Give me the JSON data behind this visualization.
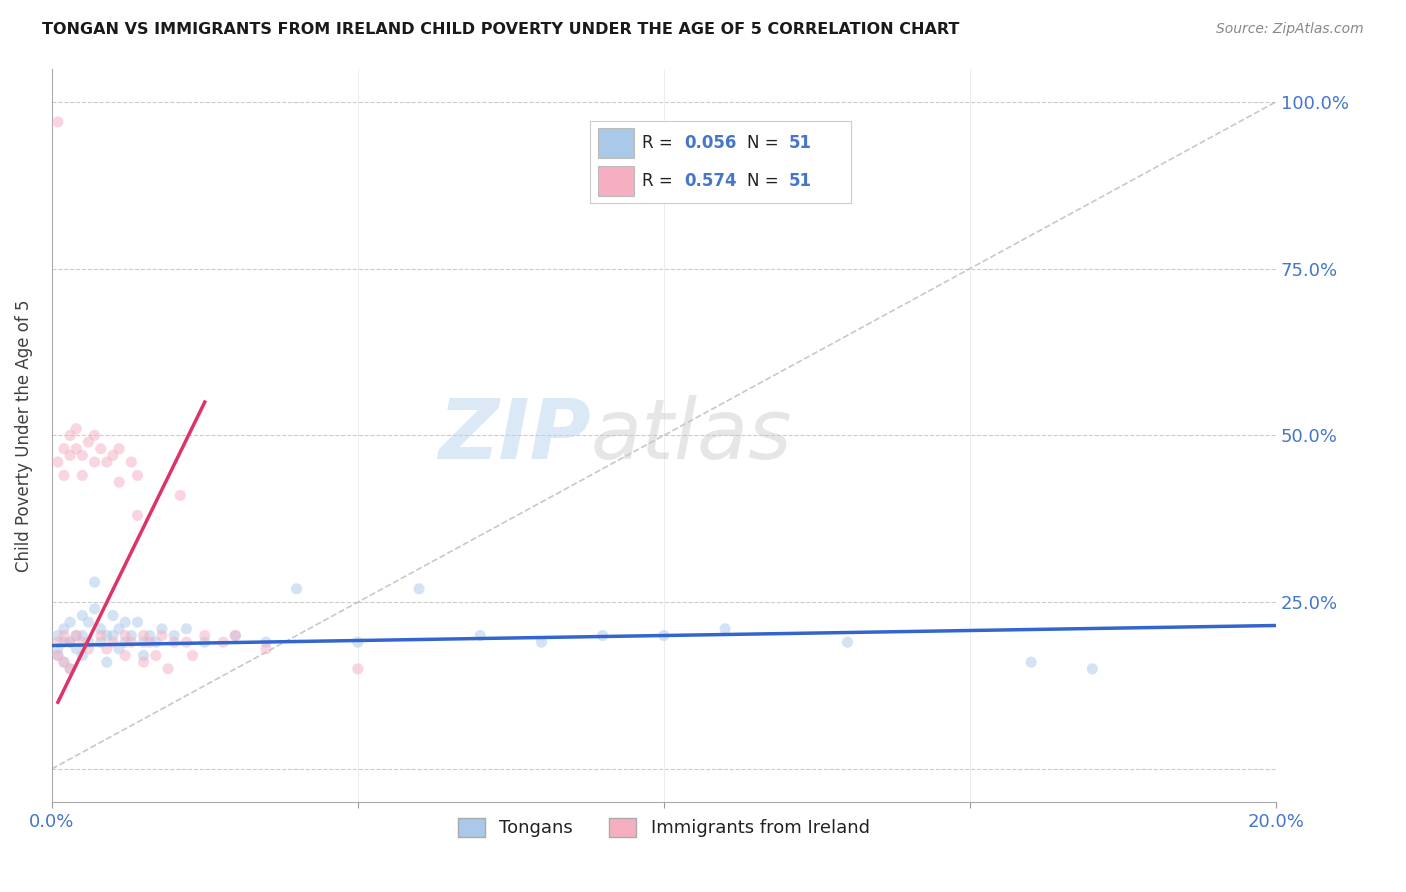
{
  "title": "TONGAN VS IMMIGRANTS FROM IRELAND CHILD POVERTY UNDER THE AGE OF 5 CORRELATION CHART",
  "source": "Source: ZipAtlas.com",
  "ylabel": "Child Poverty Under the Age of 5",
  "xlim": [
    0.0,
    0.2
  ],
  "ylim": [
    -0.05,
    1.05
  ],
  "xticks": [
    0.0,
    0.05,
    0.1,
    0.15,
    0.2
  ],
  "xtick_labels": [
    "0.0%",
    "",
    "",
    "",
    "20.0%"
  ],
  "ytick_positions": [
    0.0,
    0.25,
    0.5,
    0.75,
    1.0
  ],
  "ytick_labels": [
    "",
    "25.0%",
    "50.0%",
    "75.0%",
    "100.0%"
  ],
  "legend_labels": [
    "Tongans",
    "Immigrants from Ireland"
  ],
  "R_blue": 0.056,
  "N_blue": 51,
  "R_pink": 0.574,
  "N_pink": 51,
  "blue_color": "#aac8e8",
  "pink_color": "#f5afc0",
  "blue_line_color": "#3366cc",
  "pink_line_color": "#dd3366",
  "diag_line_color": "#bbbbbb",
  "watermark_zip": "ZIP",
  "watermark_atlas": "atlas",
  "background_color": "#ffffff",
  "grid_color": "#cccccc",
  "title_color": "#1a1a1a",
  "axis_label_color": "#4477cc",
  "blue_scatter": [
    [
      0.001,
      0.2
    ],
    [
      0.001,
      0.18
    ],
    [
      0.001,
      0.17
    ],
    [
      0.002,
      0.21
    ],
    [
      0.002,
      0.19
    ],
    [
      0.002,
      0.16
    ],
    [
      0.003,
      0.22
    ],
    [
      0.003,
      0.19
    ],
    [
      0.003,
      0.15
    ],
    [
      0.004,
      0.2
    ],
    [
      0.004,
      0.18
    ],
    [
      0.005,
      0.23
    ],
    [
      0.005,
      0.2
    ],
    [
      0.005,
      0.17
    ],
    [
      0.006,
      0.22
    ],
    [
      0.006,
      0.19
    ],
    [
      0.007,
      0.28
    ],
    [
      0.007,
      0.24
    ],
    [
      0.008,
      0.21
    ],
    [
      0.008,
      0.19
    ],
    [
      0.009,
      0.2
    ],
    [
      0.009,
      0.16
    ],
    [
      0.01,
      0.23
    ],
    [
      0.01,
      0.2
    ],
    [
      0.011,
      0.21
    ],
    [
      0.011,
      0.18
    ],
    [
      0.012,
      0.22
    ],
    [
      0.012,
      0.19
    ],
    [
      0.013,
      0.2
    ],
    [
      0.014,
      0.22
    ],
    [
      0.015,
      0.19
    ],
    [
      0.015,
      0.17
    ],
    [
      0.016,
      0.2
    ],
    [
      0.017,
      0.19
    ],
    [
      0.018,
      0.21
    ],
    [
      0.02,
      0.2
    ],
    [
      0.022,
      0.21
    ],
    [
      0.025,
      0.19
    ],
    [
      0.03,
      0.2
    ],
    [
      0.035,
      0.19
    ],
    [
      0.04,
      0.27
    ],
    [
      0.05,
      0.19
    ],
    [
      0.06,
      0.27
    ],
    [
      0.07,
      0.2
    ],
    [
      0.08,
      0.19
    ],
    [
      0.09,
      0.2
    ],
    [
      0.1,
      0.2
    ],
    [
      0.11,
      0.21
    ],
    [
      0.13,
      0.19
    ],
    [
      0.16,
      0.16
    ],
    [
      0.17,
      0.15
    ]
  ],
  "pink_scatter": [
    [
      0.001,
      0.97
    ],
    [
      0.001,
      0.46
    ],
    [
      0.001,
      0.19
    ],
    [
      0.001,
      0.17
    ],
    [
      0.002,
      0.48
    ],
    [
      0.002,
      0.44
    ],
    [
      0.002,
      0.2
    ],
    [
      0.002,
      0.16
    ],
    [
      0.003,
      0.5
    ],
    [
      0.003,
      0.47
    ],
    [
      0.003,
      0.19
    ],
    [
      0.003,
      0.15
    ],
    [
      0.004,
      0.51
    ],
    [
      0.004,
      0.48
    ],
    [
      0.004,
      0.2
    ],
    [
      0.005,
      0.47
    ],
    [
      0.005,
      0.44
    ],
    [
      0.005,
      0.19
    ],
    [
      0.006,
      0.49
    ],
    [
      0.006,
      0.18
    ],
    [
      0.007,
      0.5
    ],
    [
      0.007,
      0.46
    ],
    [
      0.008,
      0.48
    ],
    [
      0.008,
      0.2
    ],
    [
      0.009,
      0.46
    ],
    [
      0.009,
      0.18
    ],
    [
      0.01,
      0.47
    ],
    [
      0.01,
      0.19
    ],
    [
      0.011,
      0.48
    ],
    [
      0.011,
      0.43
    ],
    [
      0.012,
      0.2
    ],
    [
      0.012,
      0.17
    ],
    [
      0.013,
      0.46
    ],
    [
      0.013,
      0.19
    ],
    [
      0.014,
      0.44
    ],
    [
      0.014,
      0.38
    ],
    [
      0.015,
      0.2
    ],
    [
      0.015,
      0.16
    ],
    [
      0.016,
      0.19
    ],
    [
      0.017,
      0.17
    ],
    [
      0.018,
      0.2
    ],
    [
      0.019,
      0.15
    ],
    [
      0.02,
      0.19
    ],
    [
      0.021,
      0.41
    ],
    [
      0.022,
      0.19
    ],
    [
      0.023,
      0.17
    ],
    [
      0.025,
      0.2
    ],
    [
      0.028,
      0.19
    ],
    [
      0.03,
      0.2
    ],
    [
      0.035,
      0.18
    ],
    [
      0.05,
      0.15
    ]
  ],
  "marker_size": 65,
  "marker_alpha": 0.5,
  "blue_line_x": [
    0.0,
    0.2
  ],
  "blue_line_y": [
    0.185,
    0.215
  ],
  "pink_line_x": [
    0.001,
    0.025
  ],
  "pink_line_y": [
    0.1,
    0.55
  ]
}
